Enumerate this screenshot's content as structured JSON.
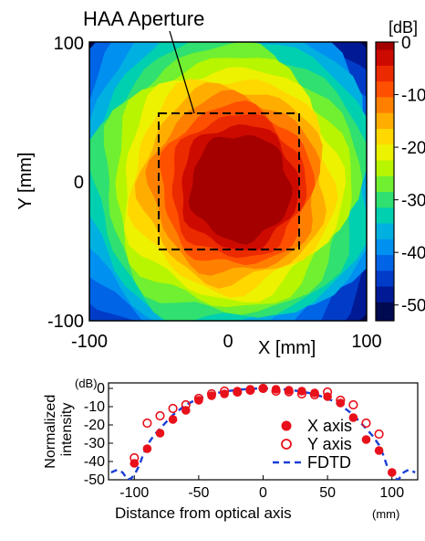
{
  "chart_data": [
    {
      "type": "heatmap",
      "annotation": "HAA Aperture",
      "xlabel": "X [mm]",
      "ylabel": "Y [mm]",
      "xlim": [
        -100,
        100
      ],
      "ylim": [
        -100,
        100
      ],
      "x_ticks": [
        "-100",
        "0",
        "100"
      ],
      "y_ticks": [
        "100",
        "0",
        "-100"
      ],
      "aperture_box": {
        "x": [
          -50,
          50
        ],
        "y": [
          -50,
          50
        ]
      },
      "hot_spot_center": {
        "x": 10,
        "y": -5
      },
      "colorbar": {
        "unit": "[dB]",
        "range": [
          -53,
          0
        ],
        "ticks": [
          "0",
          "-10",
          "-20",
          "-30",
          "-40",
          "-50"
        ],
        "tick_values": [
          0,
          -10,
          -20,
          -30,
          -40,
          -50
        ],
        "bands": [
          {
            "value": 0,
            "color": "#a50000"
          },
          {
            "value": -3,
            "color": "#cd0a00"
          },
          {
            "value": -6,
            "color": "#ec2a00"
          },
          {
            "value": -9,
            "color": "#ff5000"
          },
          {
            "value": -12,
            "color": "#ff8000"
          },
          {
            "value": -15,
            "color": "#ffae00"
          },
          {
            "value": -18,
            "color": "#ffd800"
          },
          {
            "value": -21,
            "color": "#ecf200"
          },
          {
            "value": -24,
            "color": "#b8f500"
          },
          {
            "value": -27,
            "color": "#70f030"
          },
          {
            "value": -30,
            "color": "#30e070"
          },
          {
            "value": -33,
            "color": "#00d0b0"
          },
          {
            "value": -36,
            "color": "#00b0e0"
          },
          {
            "value": -39,
            "color": "#0090f0"
          },
          {
            "value": -42,
            "color": "#0064e6"
          },
          {
            "value": -45,
            "color": "#003cc8"
          },
          {
            "value": -48,
            "color": "#001a96"
          },
          {
            "value": -51,
            "color": "#000a50"
          }
        ]
      }
    },
    {
      "type": "scatter",
      "ylabel": "Normalized\nintensity",
      "ylabel_unit": "(dB)",
      "xlabel": "Distance from optical axis",
      "xlabel_unit": "(mm)",
      "xlim": [
        -120,
        120
      ],
      "ylim": [
        -50,
        3
      ],
      "x_ticks": [
        -100,
        -50,
        0,
        50,
        100
      ],
      "y_ticks": [
        0,
        -10,
        -20,
        -30,
        -40,
        -50
      ],
      "legend_position": "lower-right",
      "series": [
        {
          "name": "X axis",
          "marker": "filled-circle",
          "color": "#e8101a",
          "x": [
            -100,
            -90,
            -80,
            -70,
            -60,
            -50,
            -40,
            -30,
            -20,
            -10,
            0,
            10,
            20,
            30,
            40,
            50,
            60,
            70,
            80,
            90,
            100
          ],
          "y": [
            -41,
            -33,
            -24.5,
            -17,
            -12,
            -6.5,
            -4,
            -3,
            -1.5,
            -0.5,
            0,
            -0.5,
            -1,
            -1.5,
            -2.5,
            -4.5,
            -8,
            -16,
            -28,
            -34,
            -46
          ]
        },
        {
          "name": "Y axis",
          "marker": "open-circle",
          "color": "#e8101a",
          "x": [
            -100,
            -90,
            -80,
            -70,
            -60,
            -50,
            -40,
            -30,
            -20,
            -10,
            0,
            10,
            20,
            30,
            40,
            50,
            60,
            70,
            80,
            90
          ],
          "y": [
            -38,
            -19,
            -15,
            -11,
            -9,
            -5.5,
            -3,
            -1.5,
            -2,
            -1,
            0,
            -1.5,
            -1.8,
            -3,
            -3.5,
            -2,
            -6.5,
            -9,
            -19,
            -25
          ]
        },
        {
          "name": "FDTD",
          "line": "dashed",
          "color": "#1a3fd6",
          "x": [
            -118,
            -113,
            -109,
            -105,
            -102,
            -99,
            -96,
            -93,
            -90,
            -85,
            -80,
            -70,
            -60,
            -50,
            -40,
            -30,
            -20,
            -10,
            0,
            10,
            20,
            30,
            40,
            50,
            60,
            70,
            80,
            85,
            90,
            93,
            96,
            99,
            102,
            105,
            109,
            113,
            118
          ],
          "y": [
            -46,
            -44.5,
            -46,
            -50,
            -49,
            -46,
            -42,
            -36,
            -31,
            -26,
            -22,
            -14.5,
            -9,
            -5.5,
            -3.2,
            -1.7,
            -0.8,
            -0.2,
            0,
            -0.2,
            -0.8,
            -1.7,
            -3.2,
            -5.5,
            -9,
            -14.5,
            -22,
            -26,
            -31,
            -36,
            -42,
            -46,
            -49,
            -50,
            -46,
            -44.5,
            -46
          ]
        }
      ]
    }
  ]
}
